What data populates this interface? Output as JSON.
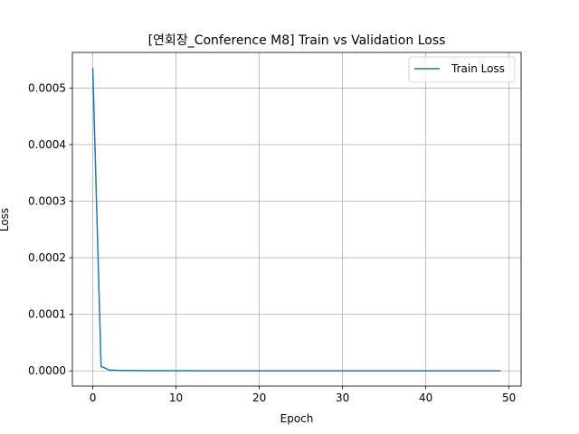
{
  "chart_data": {
    "type": "line",
    "title": "[연회장_Conference M8] Train vs Validation Loss",
    "xlabel": "Epoch",
    "ylabel": "Loss",
    "xlim": [
      -2.45,
      51.45
    ],
    "ylim": [
      -2.68e-05,
      0.0005628
    ],
    "grid": true,
    "legend_position": "top-right",
    "x_ticks": [
      0,
      10,
      20,
      30,
      40,
      50
    ],
    "x_tick_labels": [
      "0",
      "10",
      "20",
      "30",
      "40",
      "50"
    ],
    "y_ticks": [
      0.0,
      0.0001,
      0.0002,
      0.0003,
      0.0004,
      0.0005
    ],
    "y_tick_labels": [
      "0.0000",
      "0.0001",
      "0.0002",
      "0.0003",
      "0.0004",
      "0.0005"
    ],
    "series": [
      {
        "name": "Train Loss",
        "color": "#1f77b4",
        "x": [
          0,
          1,
          2,
          3,
          4,
          5,
          6,
          7,
          8,
          9,
          10,
          11,
          12,
          13,
          14,
          15,
          16,
          17,
          18,
          19,
          20,
          21,
          22,
          23,
          24,
          25,
          26,
          27,
          28,
          29,
          30,
          31,
          32,
          33,
          34,
          35,
          36,
          37,
          38,
          39,
          40,
          41,
          42,
          43,
          44,
          45,
          46,
          47,
          48,
          49
        ],
        "values": [
          0.000535,
          8e-06,
          1.5e-06,
          1e-06,
          8e-07,
          6e-07,
          5e-07,
          4e-07,
          4e-07,
          3e-07,
          3e-07,
          3e-07,
          3e-07,
          2e-07,
          2e-07,
          2e-07,
          2e-07,
          2e-07,
          2e-07,
          2e-07,
          2e-07,
          2e-07,
          2e-07,
          2e-07,
          2e-07,
          2e-07,
          2e-07,
          2e-07,
          2e-07,
          2e-07,
          2e-07,
          2e-07,
          2e-07,
          2e-07,
          2e-07,
          2e-07,
          2e-07,
          2e-07,
          2e-07,
          2e-07,
          2e-07,
          2e-07,
          2e-07,
          2e-07,
          2e-07,
          2e-07,
          2e-07,
          2e-07,
          2e-07,
          2e-07
        ]
      }
    ]
  }
}
